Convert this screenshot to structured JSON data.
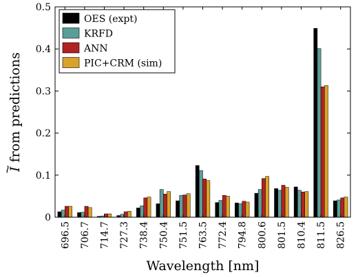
{
  "chart_data": {
    "type": "bar",
    "xlabel": "Wavelength [nm]",
    "ylabel_symbol": "I",
    "ylabel_text": " from predictions",
    "ylim": [
      0,
      0.5
    ],
    "yticks": [
      "0",
      "0.1",
      "0.2",
      "0.3",
      "0.4",
      "0.5"
    ],
    "grid": false,
    "legend_position": "top-left",
    "categories": [
      "696.5",
      "706.7",
      "714.7",
      "727.3",
      "738.4",
      "750.4",
      "751.5",
      "763.5",
      "772.4",
      "794.8",
      "800.6",
      "801.5",
      "810.4",
      "811.5",
      "826.5"
    ],
    "series": [
      {
        "name": "OES (expt)",
        "color": "#000000",
        "values": [
          0.013,
          0.011,
          0.002,
          0.004,
          0.022,
          0.032,
          0.039,
          0.123,
          0.035,
          0.034,
          0.057,
          0.068,
          0.072,
          0.449,
          0.039
        ]
      },
      {
        "name": "KRFD",
        "color": "#5b9e99",
        "values": [
          0.017,
          0.012,
          0.003,
          0.007,
          0.027,
          0.066,
          0.052,
          0.111,
          0.04,
          0.032,
          0.066,
          0.064,
          0.064,
          0.401,
          0.041
        ]
      },
      {
        "name": "ANN",
        "color": "#b22222",
        "values": [
          0.026,
          0.026,
          0.008,
          0.013,
          0.046,
          0.055,
          0.053,
          0.091,
          0.052,
          0.038,
          0.092,
          0.076,
          0.06,
          0.31,
          0.046
        ]
      },
      {
        "name": "PIC+CRM (sim)",
        "color": "#d9a32a",
        "values": [
          0.026,
          0.023,
          0.008,
          0.014,
          0.048,
          0.061,
          0.056,
          0.087,
          0.05,
          0.036,
          0.097,
          0.071,
          0.061,
          0.313,
          0.048
        ]
      }
    ]
  }
}
